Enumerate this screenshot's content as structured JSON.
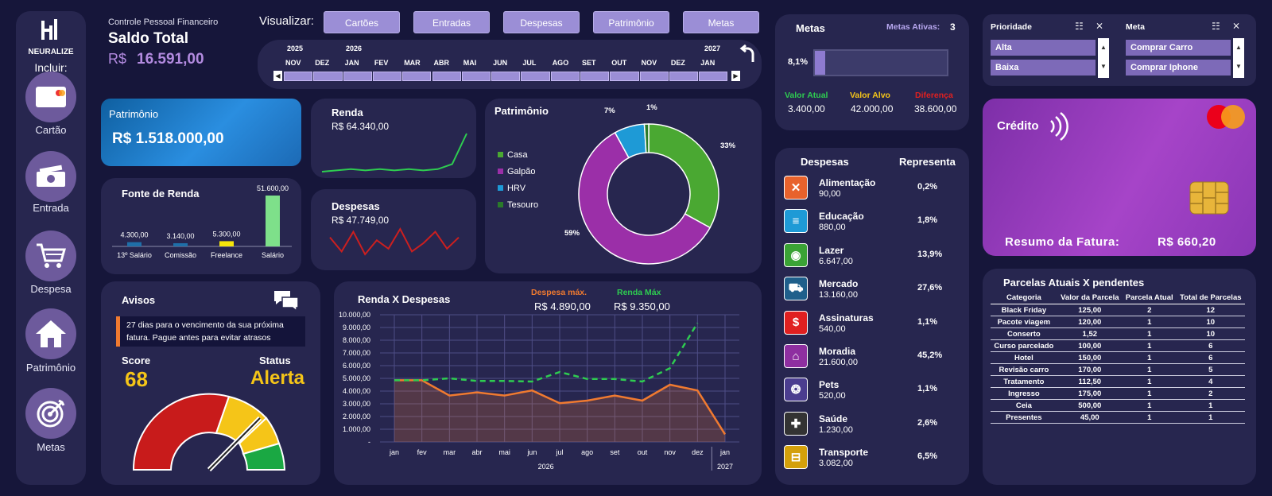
{
  "brand": {
    "name": "NEURALIZE",
    "include_label": "Incluir:"
  },
  "sidebar": {
    "items": [
      {
        "label": "Cartão",
        "icon": "credit-card-icon"
      },
      {
        "label": "Entrada",
        "icon": "cash-icon"
      },
      {
        "label": "Despesa",
        "icon": "cart-icon"
      },
      {
        "label": "Patrimônio",
        "icon": "house-icon"
      },
      {
        "label": "Metas",
        "icon": "target-icon"
      }
    ]
  },
  "header": {
    "subtitle": "Controle Pessoal Financeiro",
    "title": "Saldo Total",
    "currency": "R$",
    "value": "16.591,00"
  },
  "view": {
    "label": "Visualizar:",
    "tabs": [
      "Cartões",
      "Entradas",
      "Despesas",
      "Patrimônio",
      "Metas"
    ]
  },
  "timeline": {
    "years": [
      "2025",
      "2026",
      "2027"
    ],
    "months": [
      "NOV",
      "DEZ",
      "JAN",
      "FEV",
      "MAR",
      "ABR",
      "MAI",
      "JUN",
      "JUL",
      "AGO",
      "SET",
      "OUT",
      "NOV",
      "DEZ",
      "JAN"
    ]
  },
  "patrimonio_kpi": {
    "label": "Patrimônio",
    "value": "R$ 1.518.000,00"
  },
  "renda_kpi": {
    "label": "Renda",
    "value": "R$ 64.340,00"
  },
  "despesas_kpi": {
    "label": "Despesas",
    "value": "R$ 47.749,00"
  },
  "fonte": {
    "title": "Fonte de Renda"
  },
  "patr_donut": {
    "title": "Patrimônio"
  },
  "metas": {
    "title": "Metas",
    "active_label": "Metas Ativas:",
    "active_count": "3",
    "progress_label": "8,1%",
    "progress": 0.081,
    "atual_label": "Valor Atual",
    "atual": "3.400,00",
    "alvo_label": "Valor Alvo",
    "alvo": "42.000,00",
    "dif_label": "Diferença",
    "dif": "38.600,00"
  },
  "filters": {
    "prioridade_label": "Prioridade",
    "prioridade": [
      "Alta",
      "Baixa"
    ],
    "meta_label": "Meta",
    "meta": [
      "Comprar Carro",
      "Comprar Iphone"
    ]
  },
  "credit": {
    "label": "Crédito",
    "resumo_label": "Resumo da Fatura:",
    "resumo": "R$ 660,20"
  },
  "despesas_list": {
    "head_a": "Despesas",
    "head_b": "Representa",
    "items": [
      {
        "name": "Alimentação",
        "value": "90,00",
        "pct": "0,2%",
        "icon": "utensils-icon",
        "color": "#e8622c"
      },
      {
        "name": "Educação",
        "value": "880,00",
        "pct": "1,8%",
        "icon": "books-icon",
        "color": "#1e9ad6"
      },
      {
        "name": "Lazer",
        "value": "6.647,00",
        "pct": "13,9%",
        "icon": "gamepad-icon",
        "color": "#3aa335"
      },
      {
        "name": "Mercado",
        "value": "13.160,00",
        "pct": "27,6%",
        "icon": "cart-icon",
        "color": "#1f5f8b"
      },
      {
        "name": "Assinaturas",
        "value": "540,00",
        "pct": "1,1%",
        "icon": "dollar-icon",
        "color": "#e02020"
      },
      {
        "name": "Moradia",
        "value": "21.600,00",
        "pct": "45,2%",
        "icon": "house-icon",
        "color": "#8e2fa0"
      },
      {
        "name": "Pets",
        "value": "520,00",
        "pct": "1,1%",
        "icon": "paw-icon",
        "color": "#4b3d8f"
      },
      {
        "name": "Saúde",
        "value": "1.230,00",
        "pct": "2,6%",
        "icon": "health-icon",
        "color": "#333333"
      },
      {
        "name": "Transporte",
        "value": "3.082,00",
        "pct": "6,5%",
        "icon": "car-icon",
        "color": "#d4a00a"
      }
    ]
  },
  "avisos": {
    "title": "Avisos",
    "message": "27 dias para o vencimento da sua próxima fatura. Pague antes para evitar atrasos",
    "score_label": "Score",
    "score": "68",
    "status_label": "Status",
    "status": "Alerta"
  },
  "rxd": {
    "title": "Renda X Despesas",
    "desp_max_label": "Despesa máx.",
    "desp_max": "R$ 4.890,00",
    "renda_max_label": "Renda Máx",
    "renda_max": "R$ 9.350,00"
  },
  "parcelas": {
    "title": "Parcelas Atuais X pendentes",
    "headers": [
      "Categoria",
      "Valor da Parcela",
      "Parcela Atual",
      "Total de Parcelas"
    ],
    "rows": [
      [
        "Black Friday",
        "125,00",
        "2",
        "12"
      ],
      [
        "Pacote viagem",
        "120,00",
        "1",
        "10"
      ],
      [
        "Conserto",
        "1,52",
        "1",
        "10"
      ],
      [
        "Curso parcelado",
        "100,00",
        "1",
        "6"
      ],
      [
        "Hotel",
        "150,00",
        "1",
        "6"
      ],
      [
        "Revisão carro",
        "170,00",
        "1",
        "5"
      ],
      [
        "Tratamento",
        "112,50",
        "1",
        "4"
      ],
      [
        "Ingresso",
        "175,00",
        "1",
        "2"
      ],
      [
        "Ceia",
        "500,00",
        "1",
        "1"
      ],
      [
        "Presentes",
        "45,00",
        "1",
        "1"
      ]
    ]
  },
  "chart_data": [
    {
      "type": "bar",
      "title": "Fonte de Renda",
      "categories": [
        "13º Salário",
        "Comissão",
        "Freelance",
        "Salário"
      ],
      "values": [
        4300,
        3140,
        5300,
        51600
      ],
      "data_labels": [
        "4.300,00",
        "3.140,00",
        "5.300,00",
        "51.600,00"
      ],
      "colors": [
        "#1f6fa8",
        "#1f6fa8",
        "#f5e50a",
        "#7ee08a"
      ]
    },
    {
      "type": "pie",
      "title": "Patrimônio",
      "categories": [
        "Casa",
        "Galpão",
        "HRV",
        "Tesouro"
      ],
      "values": [
        33,
        59,
        7,
        1
      ],
      "data_labels": [
        "33%",
        "59%",
        "7%",
        "1%"
      ],
      "colors": [
        "#4aa832",
        "#9b2fa8",
        "#1e9ad6",
        "#2a7a2a"
      ]
    },
    {
      "type": "line",
      "title": "Renda X Despesas",
      "x": [
        "jan",
        "fev",
        "mar",
        "abr",
        "mai",
        "jun",
        "jul",
        "ago",
        "set",
        "out",
        "nov",
        "dez",
        "jan"
      ],
      "x_groups": [
        "2026",
        "2027"
      ],
      "yticks": [
        "-",
        "1.000,00",
        "2.000,00",
        "3.000,00",
        "4.000,00",
        "5.000,00",
        "6.000,00",
        "7.000,00",
        "8.000,00",
        "9.000,00",
        "10.000,00"
      ],
      "ylim": [
        0,
        10000
      ],
      "series": [
        {
          "name": "Renda",
          "values": [
            4850,
            4850,
            5000,
            4800,
            4800,
            4750,
            5500,
            4950,
            4950,
            4750,
            5800,
            9350,
            null
          ],
          "color": "#2ecc50"
        },
        {
          "name": "Despesas",
          "values": [
            4850,
            4850,
            3650,
            3900,
            3650,
            4050,
            3050,
            3250,
            3650,
            3250,
            4500,
            4050,
            600
          ],
          "color": "#f07a30"
        }
      ]
    },
    {
      "type": "line",
      "title": "Renda",
      "values": [
        3,
        3.1,
        3.2,
        3.1,
        3.2,
        3.1,
        3.2,
        3.1,
        3.2,
        3.6,
        6
      ],
      "color": "#2ecc50"
    },
    {
      "type": "line",
      "title": "Despesas",
      "values": [
        3,
        2.5,
        3.2,
        2.4,
        2.9,
        2.6,
        3.3,
        2.5,
        2.8,
        3.2,
        2.6,
        3
      ],
      "color": "#cc1f1f"
    }
  ]
}
